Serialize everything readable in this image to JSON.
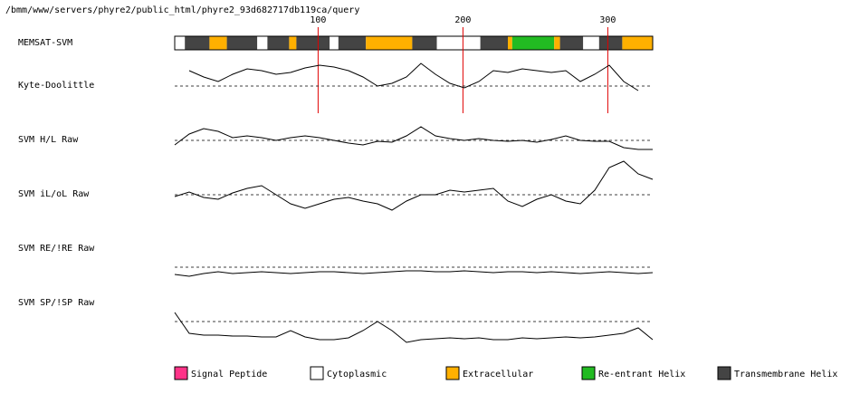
{
  "chart_data": {
    "type": "memsat",
    "title": "/bmm/www/servers/phyre2/public_html/phyre2_93d682717db119ca/query",
    "xlim": [
      1,
      331
    ],
    "xticks": [
      100,
      200,
      300
    ],
    "topology_name": "MEMSAT-SVM",
    "legend": [
      {
        "name": "Signal Peptide",
        "color": "#ff3388"
      },
      {
        "name": "Cytoplasmic",
        "color": "#ffffff"
      },
      {
        "name": "Extracellular",
        "color": "#ffb000"
      },
      {
        "name": "Re-entrant Helix",
        "color": "#22bb22"
      },
      {
        "name": "Transmembrane Helix",
        "color": "#444444"
      }
    ],
    "segments": [
      {
        "start": 1,
        "end": 8,
        "class": 1
      },
      {
        "start": 8,
        "end": 25,
        "class": 4
      },
      {
        "start": 25,
        "end": 37,
        "class": 2
      },
      {
        "start": 37,
        "end": 58,
        "class": 4
      },
      {
        "start": 58,
        "end": 65,
        "class": 1
      },
      {
        "start": 65,
        "end": 80,
        "class": 4
      },
      {
        "start": 80,
        "end": 85,
        "class": 2
      },
      {
        "start": 85,
        "end": 108,
        "class": 4
      },
      {
        "start": 108,
        "end": 114,
        "class": 1
      },
      {
        "start": 114,
        "end": 133,
        "class": 4
      },
      {
        "start": 133,
        "end": 165,
        "class": 2
      },
      {
        "start": 165,
        "end": 182,
        "class": 4
      },
      {
        "start": 182,
        "end": 212,
        "class": 1
      },
      {
        "start": 212,
        "end": 231,
        "class": 4
      },
      {
        "start": 231,
        "end": 234,
        "class": 2
      },
      {
        "start": 234,
        "end": 263,
        "class": 3
      },
      {
        "start": 263,
        "end": 267,
        "class": 2
      },
      {
        "start": 267,
        "end": 283,
        "class": 4
      },
      {
        "start": 283,
        "end": 294,
        "class": 1
      },
      {
        "start": 294,
        "end": 310,
        "class": 4
      },
      {
        "start": 310,
        "end": 331,
        "class": 2
      }
    ],
    "x": [
      1,
      11,
      21,
      31,
      41,
      51,
      61,
      71,
      81,
      91,
      101,
      111,
      121,
      131,
      141,
      151,
      161,
      171,
      181,
      191,
      201,
      211,
      221,
      231,
      241,
      251,
      261,
      271,
      281,
      291,
      301,
      311,
      321,
      331
    ],
    "series": [
      {
        "name": "Kyte-Doolittle",
        "color": "#000000",
        "values": [
          null,
          17,
          10,
          5,
          13,
          19,
          17,
          13,
          15,
          20,
          23,
          21,
          17,
          10,
          0,
          3,
          10,
          25,
          13,
          3,
          -2,
          5,
          17,
          15,
          19,
          17,
          15,
          17,
          5,
          13,
          23,
          5,
          -5,
          null
        ]
      },
      {
        "name": "SVM H/L Raw",
        "color": "#000000",
        "values": [
          -5,
          7,
          13,
          10,
          3,
          5,
          3,
          0,
          3,
          5,
          3,
          0,
          -3,
          -5,
          -1,
          -2,
          5,
          15,
          5,
          2,
          0,
          2,
          0,
          -1,
          0,
          -2,
          1,
          5,
          0,
          -1,
          -1,
          -8,
          -10,
          -10
        ]
      },
      {
        "name": "SVM iL/oL Raw",
        "color": "#000000",
        "values": [
          -2,
          3,
          -3,
          -5,
          2,
          7,
          10,
          0,
          -10,
          -15,
          -10,
          -5,
          -3,
          -7,
          -10,
          -17,
          -7,
          0,
          0,
          5,
          3,
          5,
          7,
          -7,
          -13,
          -5,
          0,
          -7,
          -10,
          5,
          30,
          37,
          23,
          17
        ]
      },
      {
        "name": "SVM RE/!RE Raw",
        "color": "#000000",
        "values": [
          -8,
          -10,
          -7,
          -5,
          -7,
          -6,
          -5,
          -6,
          -7,
          -6,
          -5,
          -5,
          -6,
          -7,
          -6,
          -5,
          -4,
          -4,
          -5,
          -5,
          -4,
          -5,
          -6,
          -5,
          -5,
          -6,
          -5,
          -6,
          -7,
          -6,
          -5,
          -6,
          -7,
          -6
        ]
      },
      {
        "name": "SVM SP/!SP Raw",
        "color": "#000000",
        "values": [
          10,
          -13,
          -15,
          -15,
          -16,
          -16,
          -17,
          -17,
          -10,
          -17,
          -20,
          -20,
          -18,
          -10,
          0,
          -10,
          -23,
          -20,
          -19,
          -18,
          -19,
          -18,
          -20,
          -20,
          -18,
          -19,
          -18,
          -17,
          -18,
          -17,
          -15,
          -13,
          -7,
          -20
        ]
      }
    ]
  }
}
